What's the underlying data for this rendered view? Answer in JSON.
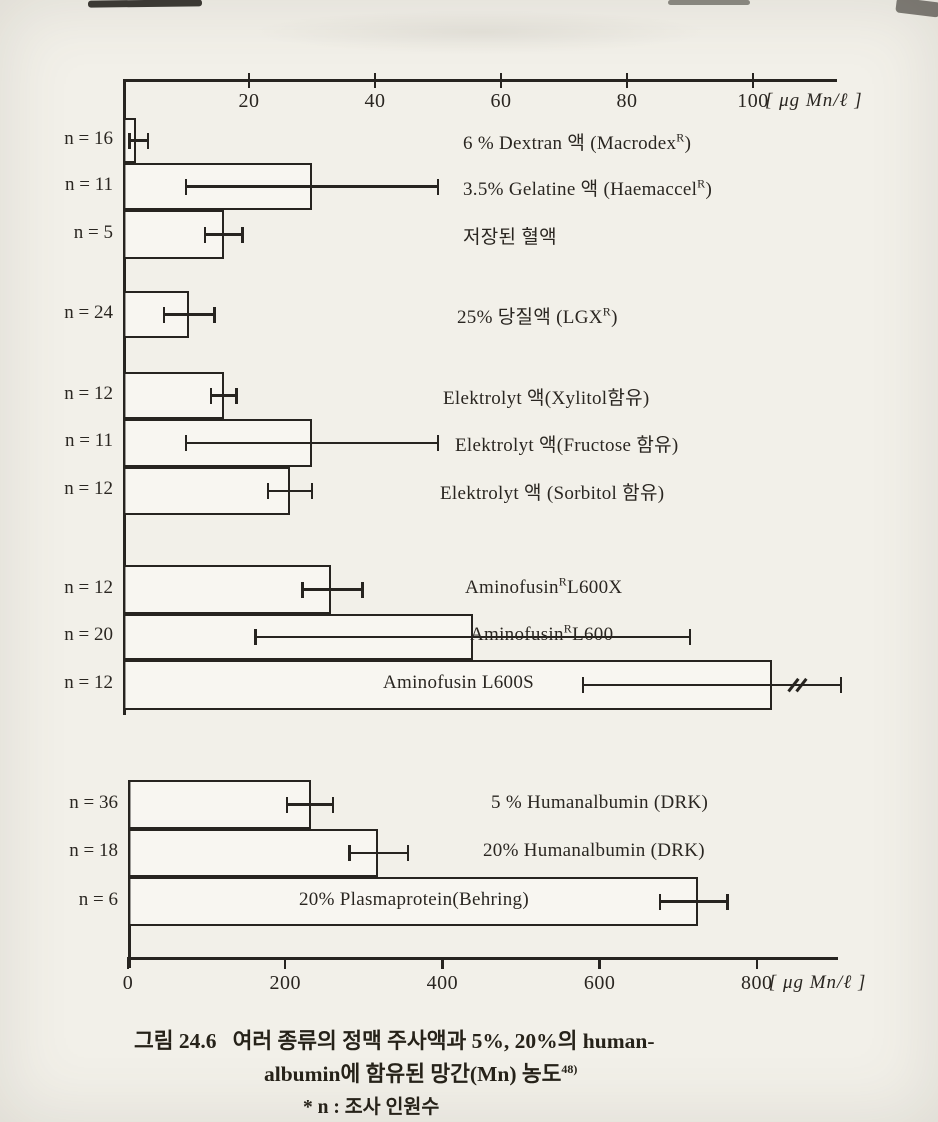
{
  "page": {
    "background_color": "#f2f0e9",
    "ink_color": "#272420"
  },
  "chart_data": [
    {
      "type": "bar",
      "orientation": "horizontal",
      "unit": "[ μg Mn/ℓ ]",
      "xlim": [
        0,
        100
      ],
      "ticks": [
        20,
        40,
        60,
        80,
        100
      ],
      "grid": false,
      "rows": [
        {
          "n": "n = 16",
          "label": "6 % Dextran 액 (Macrodex^R)",
          "value": 2,
          "err": [
            1,
            4
          ]
        },
        {
          "n": "n = 11",
          "label": "3.5% Gelatine 액 (Haemaccel^R)",
          "value": 30,
          "err": [
            10,
            50
          ]
        },
        {
          "n": "n = 5",
          "label": "저장된 혈액",
          "value": 16,
          "err": [
            13,
            19
          ]
        },
        {
          "n": "n = 24",
          "label": "25%  당질액 (LGX^R)",
          "value": 10.5,
          "err": [
            6.5,
            14.5
          ]
        },
        {
          "n": "n = 12",
          "label": "Elektrolyt 액(Xylitol함유)",
          "value": 16,
          "err": [
            14,
            18
          ]
        },
        {
          "n": "n = 11",
          "label": "Elektrolyt 액(Fructose 함유)",
          "value": 30,
          "err": [
            10,
            50
          ]
        },
        {
          "n": "n = 12",
          "label": "Elektrolyt 액 (Sorbitol 함유)",
          "value": 26.5,
          "err": [
            23,
            30
          ]
        },
        {
          "n": "n = 12",
          "label": "Aminofusin^RL600X",
          "value": 33,
          "err": [
            28.5,
            38
          ]
        },
        {
          "n": "n = 20",
          "label": "Aminofusin^RL600",
          "value": 55.5,
          "err": [
            21,
            90
          ]
        },
        {
          "n": "n = 12",
          "label": "Aminofusin L600S",
          "value": 103,
          "err": [
            73,
            114
          ],
          "axis_break_at": 107
        }
      ]
    },
    {
      "type": "bar",
      "orientation": "horizontal",
      "unit": "[ μg Mn/ℓ ]",
      "xlim": [
        0,
        800
      ],
      "ticks": [
        0,
        200,
        400,
        600,
        800
      ],
      "grid": false,
      "rows": [
        {
          "n": "n = 36",
          "label": "5 % Humanalbumin (DRK)",
          "value": 233,
          "err": [
            202,
            261
          ]
        },
        {
          "n": "n = 18",
          "label": "20% Humanalbumin (DRK)",
          "value": 318,
          "err": [
            282,
            356
          ]
        },
        {
          "n": "n = 6",
          "label": "20% Plasmaprotein(Behring)",
          "value": 725,
          "err": [
            677,
            763
          ]
        }
      ]
    }
  ],
  "caption": {
    "figure_label": "그림 24.6",
    "line1": "여러 종류의 정맥 주사액과 5%, 20%의 human-",
    "line2": "albumin에 함유된 망간(Mn) 농도",
    "line2_sup": "48)",
    "note": "* n : 조사 인원수"
  }
}
